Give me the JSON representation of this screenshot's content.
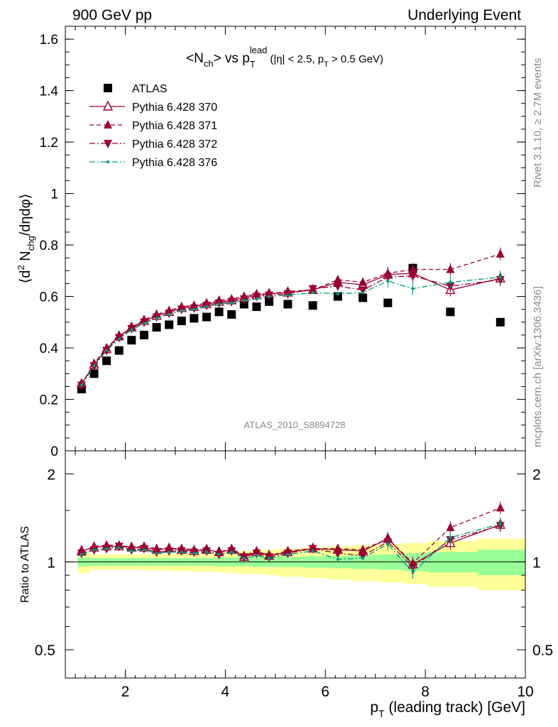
{
  "header": {
    "left": "900 GeV pp",
    "right": "Underlying Event"
  },
  "plot_title": {
    "main": "<N",
    "main_sub": "ch",
    "vs": "> vs p",
    "vs_sub": "T",
    "vs_sup": "lead",
    "cut": "(|η| < 2.5, p",
    "cut_sub": "T",
    "cut_end": " > 0.5 GeV)"
  },
  "side_labels": {
    "rivet": "Rivet 3.1.10, ≥ 2.7M events",
    "mcplots": "mcplots.cern.ch [arXiv:1306.3436]"
  },
  "analysis_id": "ATLAS_2010_S8894728",
  "colors": {
    "data": "#000000",
    "mc": "#990033",
    "mc376": "#009980",
    "band_inner": "#99ff99",
    "band_outer": "#ffff99"
  },
  "chart_data": [
    {
      "type": "scatter",
      "title": "",
      "ylabel": "⟨d² N_chg/dηdφ⟩",
      "ylim": [
        0,
        1.65
      ],
      "xlim": [
        0.8,
        10
      ],
      "yticks": [
        "0",
        "0.2",
        "0.4",
        "0.6",
        "0.8",
        "1",
        "1.2",
        "1.4",
        "1.6"
      ],
      "legend_position": "top-left",
      "x": [
        1.125,
        1.375,
        1.625,
        1.875,
        2.125,
        2.375,
        2.625,
        2.875,
        3.125,
        3.375,
        3.625,
        3.875,
        4.125,
        4.375,
        4.625,
        4.875,
        5.25,
        5.75,
        6.25,
        6.75,
        7.25,
        7.75,
        8.5,
        9.5
      ],
      "series": [
        {
          "name": "ATLAS",
          "marker": "square",
          "values": [
            0.24,
            0.3,
            0.35,
            0.39,
            0.43,
            0.45,
            0.48,
            0.49,
            0.505,
            0.515,
            0.52,
            0.54,
            0.53,
            0.57,
            0.56,
            0.58,
            0.57,
            0.565,
            0.6,
            0.595,
            0.575,
            0.71,
            0.54,
            0.5
          ]
        },
        {
          "name": "Pythia 6.428 370",
          "marker": "open-triangle-up",
          "line": "solid",
          "values": [
            0.26,
            0.335,
            0.395,
            0.445,
            0.48,
            0.505,
            0.525,
            0.54,
            0.555,
            0.56,
            0.57,
            0.58,
            0.585,
            0.595,
            0.605,
            0.61,
            0.615,
            0.625,
            0.655,
            0.645,
            0.685,
            0.69,
            0.625,
            0.67
          ]
        },
        {
          "name": "Pythia 6.428 371",
          "marker": "filled-triangle-up",
          "line": "dashed",
          "values": [
            0.26,
            0.34,
            0.4,
            0.445,
            0.48,
            0.51,
            0.53,
            0.545,
            0.56,
            0.565,
            0.575,
            0.585,
            0.59,
            0.6,
            0.61,
            0.61,
            0.62,
            0.625,
            0.665,
            0.655,
            0.69,
            0.705,
            0.705,
            0.765
          ]
        },
        {
          "name": "Pythia 6.428 372",
          "marker": "filled-triangle-down",
          "line": "dash-dot",
          "values": [
            0.255,
            0.33,
            0.39,
            0.44,
            0.475,
            0.5,
            0.52,
            0.535,
            0.55,
            0.555,
            0.565,
            0.575,
            0.58,
            0.59,
            0.6,
            0.605,
            0.61,
            0.63,
            0.64,
            0.625,
            0.675,
            0.68,
            0.64,
            0.665
          ]
        },
        {
          "name": "Pythia 6.428 376",
          "marker": "dot",
          "line": "dash-dot",
          "values": [
            0.255,
            0.33,
            0.39,
            0.435,
            0.47,
            0.495,
            0.515,
            0.53,
            0.545,
            0.55,
            0.56,
            0.57,
            0.575,
            0.585,
            0.59,
            0.6,
            0.605,
            0.615,
            0.61,
            0.615,
            0.66,
            0.63,
            0.655,
            0.675
          ]
        }
      ]
    },
    {
      "type": "line",
      "title": "",
      "xlabel": "p_T (leading track) [GeV]",
      "ylabel": "Ratio to ATLAS",
      "yscale": "log",
      "ylim": [
        0.4,
        2.4
      ],
      "xlim": [
        0.8,
        10
      ],
      "xticks": [
        "2",
        "4",
        "6",
        "8",
        "10"
      ],
      "yticks": [
        "0.5",
        "1",
        "2"
      ],
      "x": [
        1.125,
        1.375,
        1.625,
        1.875,
        2.125,
        2.375,
        2.625,
        2.875,
        3.125,
        3.375,
        3.625,
        3.875,
        4.125,
        4.375,
        4.625,
        4.875,
        5.25,
        5.75,
        6.25,
        6.75,
        7.25,
        7.75,
        8.5,
        9.5
      ],
      "band_edges": [
        1.0,
        1.25,
        1.5,
        1.75,
        2.0,
        2.25,
        2.5,
        2.75,
        3.0,
        3.25,
        3.5,
        3.75,
        4.0,
        4.25,
        4.5,
        4.75,
        5.0,
        5.5,
        6.0,
        6.5,
        7.0,
        7.5,
        8.0,
        9.0,
        10.0
      ],
      "bands": {
        "inner_half_width": [
          0.035,
          0.03,
          0.03,
          0.03,
          0.03,
          0.03,
          0.03,
          0.03,
          0.03,
          0.03,
          0.03,
          0.035,
          0.035,
          0.035,
          0.04,
          0.04,
          0.04,
          0.045,
          0.05,
          0.055,
          0.06,
          0.07,
          0.08,
          0.1
        ],
        "outer_half_width": [
          0.085,
          0.06,
          0.06,
          0.06,
          0.06,
          0.065,
          0.065,
          0.07,
          0.07,
          0.075,
          0.075,
          0.08,
          0.085,
          0.09,
          0.095,
          0.1,
          0.11,
          0.12,
          0.13,
          0.14,
          0.15,
          0.16,
          0.18,
          0.2
        ]
      },
      "series": [
        {
          "name": "Pythia 6.428 370",
          "values": [
            1.09,
            1.12,
            1.13,
            1.13,
            1.12,
            1.12,
            1.1,
            1.11,
            1.1,
            1.09,
            1.1,
            1.08,
            1.1,
            1.04,
            1.08,
            1.05,
            1.08,
            1.11,
            1.1,
            1.09,
            1.2,
            0.98,
            1.16,
            1.34
          ]
        },
        {
          "name": "Pythia 6.428 371",
          "values": [
            1.08,
            1.13,
            1.14,
            1.14,
            1.12,
            1.13,
            1.11,
            1.11,
            1.11,
            1.1,
            1.1,
            1.08,
            1.11,
            1.05,
            1.09,
            1.05,
            1.09,
            1.11,
            1.11,
            1.1,
            1.2,
            0.99,
            1.31,
            1.53
          ]
        },
        {
          "name": "Pythia 6.428 372",
          "values": [
            1.07,
            1.1,
            1.11,
            1.13,
            1.1,
            1.11,
            1.08,
            1.09,
            1.09,
            1.08,
            1.09,
            1.06,
            1.09,
            1.04,
            1.07,
            1.04,
            1.07,
            1.11,
            1.07,
            1.05,
            1.17,
            0.96,
            1.19,
            1.33
          ]
        },
        {
          "name": "Pythia 6.428 376",
          "values": [
            1.06,
            1.1,
            1.11,
            1.12,
            1.09,
            1.1,
            1.07,
            1.08,
            1.08,
            1.07,
            1.08,
            1.06,
            1.08,
            1.03,
            1.05,
            1.03,
            1.06,
            1.09,
            1.02,
            1.03,
            1.15,
            0.92,
            1.21,
            1.35
          ]
        }
      ]
    }
  ]
}
